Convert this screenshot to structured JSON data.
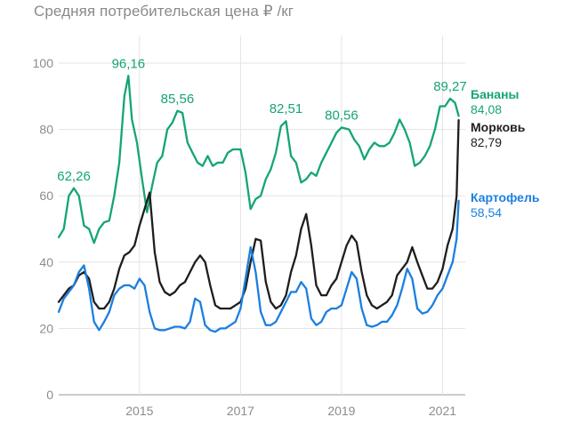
{
  "chart_data": {
    "type": "line",
    "title": "Средняя потребительская цена ₽ /кг",
    "xlabel": "",
    "ylabel": "",
    "ylim": [
      0,
      100
    ],
    "y_ticks": [
      "0",
      "20",
      "40",
      "60",
      "80",
      "100"
    ],
    "x_ticks": [
      {
        "label": "2015",
        "x": 2015.3
      },
      {
        "label": "2017",
        "x": 2017.3
      },
      {
        "label": "2019",
        "x": 2019.3
      },
      {
        "label": "2021",
        "x": 2021.3
      }
    ],
    "xlim": [
      2013.7,
      2021.75
    ],
    "grid": true,
    "series": [
      {
        "name": "Бананы",
        "color": "#15a478",
        "end_label": "84,08",
        "points": [
          [
            2013.7,
            47.5
          ],
          [
            2013.8,
            50
          ],
          [
            2013.9,
            60
          ],
          [
            2014.0,
            62.3
          ],
          [
            2014.1,
            60
          ],
          [
            2014.2,
            51
          ],
          [
            2014.3,
            50
          ],
          [
            2014.4,
            45.8
          ],
          [
            2014.5,
            50
          ],
          [
            2014.6,
            52
          ],
          [
            2014.7,
            52.5
          ],
          [
            2014.8,
            60
          ],
          [
            2014.9,
            70
          ],
          [
            2015.0,
            90
          ],
          [
            2015.08,
            96.2
          ],
          [
            2015.15,
            83
          ],
          [
            2015.25,
            76
          ],
          [
            2015.35,
            65
          ],
          [
            2015.45,
            55
          ],
          [
            2015.55,
            63
          ],
          [
            2015.65,
            70
          ],
          [
            2015.75,
            72
          ],
          [
            2015.85,
            80
          ],
          [
            2015.95,
            82
          ],
          [
            2016.05,
            85.6
          ],
          [
            2016.15,
            85
          ],
          [
            2016.25,
            76
          ],
          [
            2016.35,
            73
          ],
          [
            2016.45,
            70
          ],
          [
            2016.55,
            69
          ],
          [
            2016.65,
            72
          ],
          [
            2016.75,
            69
          ],
          [
            2016.85,
            70
          ],
          [
            2016.95,
            70
          ],
          [
            2017.05,
            73
          ],
          [
            2017.15,
            74
          ],
          [
            2017.3,
            74
          ],
          [
            2017.4,
            67
          ],
          [
            2017.5,
            56
          ],
          [
            2017.6,
            59
          ],
          [
            2017.7,
            60
          ],
          [
            2017.8,
            65
          ],
          [
            2017.9,
            68
          ],
          [
            2018.0,
            73
          ],
          [
            2018.1,
            81
          ],
          [
            2018.2,
            82.5
          ],
          [
            2018.3,
            72
          ],
          [
            2018.4,
            70
          ],
          [
            2018.5,
            64
          ],
          [
            2018.6,
            65
          ],
          [
            2018.7,
            67
          ],
          [
            2018.8,
            66
          ],
          [
            2018.9,
            70
          ],
          [
            2019.0,
            73
          ],
          [
            2019.1,
            76
          ],
          [
            2019.2,
            79
          ],
          [
            2019.3,
            80.6
          ],
          [
            2019.45,
            80
          ],
          [
            2019.55,
            77
          ],
          [
            2019.65,
            75
          ],
          [
            2019.75,
            71
          ],
          [
            2019.85,
            74
          ],
          [
            2019.95,
            76
          ],
          [
            2020.05,
            75
          ],
          [
            2020.15,
            75
          ],
          [
            2020.25,
            76
          ],
          [
            2020.35,
            79
          ],
          [
            2020.45,
            83
          ],
          [
            2020.55,
            80
          ],
          [
            2020.65,
            76
          ],
          [
            2020.75,
            69
          ],
          [
            2020.85,
            70
          ],
          [
            2020.95,
            72
          ],
          [
            2021.05,
            75
          ],
          [
            2021.15,
            80
          ],
          [
            2021.25,
            87
          ],
          [
            2021.35,
            87
          ],
          [
            2021.45,
            89.3
          ],
          [
            2021.55,
            88
          ],
          [
            2021.62,
            84.1
          ]
        ],
        "annotations": [
          {
            "text": "62,26",
            "x": 2014.0,
            "y": 62.26
          },
          {
            "text": "96,16",
            "x": 2015.08,
            "y": 96.16
          },
          {
            "text": "85,56",
            "x": 2016.05,
            "y": 85.56
          },
          {
            "text": "82,51",
            "x": 2018.2,
            "y": 82.51
          },
          {
            "text": "80,56",
            "x": 2019.3,
            "y": 80.56
          },
          {
            "text": "89,27",
            "x": 2021.45,
            "y": 89.27
          }
        ]
      },
      {
        "name": "Морковь",
        "color": "#1e1e1e",
        "end_label": "82,79",
        "points": [
          [
            2013.7,
            28
          ],
          [
            2013.8,
            30
          ],
          [
            2013.9,
            32
          ],
          [
            2014.0,
            33
          ],
          [
            2014.1,
            36
          ],
          [
            2014.2,
            37
          ],
          [
            2014.3,
            35
          ],
          [
            2014.4,
            28
          ],
          [
            2014.5,
            26
          ],
          [
            2014.6,
            26
          ],
          [
            2014.7,
            28
          ],
          [
            2014.8,
            32
          ],
          [
            2014.9,
            38
          ],
          [
            2015.0,
            42
          ],
          [
            2015.1,
            43
          ],
          [
            2015.2,
            45
          ],
          [
            2015.3,
            51
          ],
          [
            2015.4,
            56
          ],
          [
            2015.5,
            61
          ],
          [
            2015.6,
            43
          ],
          [
            2015.7,
            34
          ],
          [
            2015.8,
            31
          ],
          [
            2015.9,
            30
          ],
          [
            2016.0,
            31
          ],
          [
            2016.1,
            33
          ],
          [
            2016.2,
            34
          ],
          [
            2016.3,
            37
          ],
          [
            2016.4,
            40
          ],
          [
            2016.5,
            42
          ],
          [
            2016.6,
            40
          ],
          [
            2016.7,
            33
          ],
          [
            2016.8,
            27
          ],
          [
            2016.9,
            26
          ],
          [
            2017.0,
            26
          ],
          [
            2017.1,
            26
          ],
          [
            2017.2,
            27
          ],
          [
            2017.3,
            28
          ],
          [
            2017.4,
            32
          ],
          [
            2017.5,
            40
          ],
          [
            2017.6,
            47
          ],
          [
            2017.7,
            46.5
          ],
          [
            2017.8,
            34
          ],
          [
            2017.9,
            28
          ],
          [
            2018.0,
            26
          ],
          [
            2018.1,
            27
          ],
          [
            2018.2,
            30
          ],
          [
            2018.3,
            37
          ],
          [
            2018.4,
            42
          ],
          [
            2018.5,
            50
          ],
          [
            2018.6,
            54.5
          ],
          [
            2018.7,
            45
          ],
          [
            2018.8,
            33
          ],
          [
            2018.9,
            30
          ],
          [
            2019.0,
            30
          ],
          [
            2019.1,
            33
          ],
          [
            2019.2,
            35
          ],
          [
            2019.3,
            40
          ],
          [
            2019.4,
            45
          ],
          [
            2019.5,
            48
          ],
          [
            2019.6,
            46
          ],
          [
            2019.7,
            37
          ],
          [
            2019.8,
            30
          ],
          [
            2019.9,
            27
          ],
          [
            2020.0,
            26
          ],
          [
            2020.1,
            27
          ],
          [
            2020.2,
            28
          ],
          [
            2020.3,
            30
          ],
          [
            2020.4,
            36
          ],
          [
            2020.5,
            38
          ],
          [
            2020.6,
            40
          ],
          [
            2020.7,
            44.5
          ],
          [
            2020.8,
            40
          ],
          [
            2020.9,
            36
          ],
          [
            2021.0,
            32
          ],
          [
            2021.1,
            32
          ],
          [
            2021.2,
            34
          ],
          [
            2021.3,
            38
          ],
          [
            2021.4,
            45
          ],
          [
            2021.5,
            50
          ],
          [
            2021.58,
            60
          ],
          [
            2021.62,
            82.8
          ]
        ]
      },
      {
        "name": "Картофель",
        "color": "#1b7fe0",
        "end_label": "58,54",
        "points": [
          [
            2013.7,
            25
          ],
          [
            2013.8,
            29
          ],
          [
            2013.9,
            31
          ],
          [
            2014.0,
            33
          ],
          [
            2014.1,
            37
          ],
          [
            2014.2,
            39
          ],
          [
            2014.3,
            32
          ],
          [
            2014.4,
            22
          ],
          [
            2014.5,
            19.5
          ],
          [
            2014.6,
            22
          ],
          [
            2014.7,
            25
          ],
          [
            2014.8,
            30
          ],
          [
            2014.9,
            32
          ],
          [
            2015.0,
            33
          ],
          [
            2015.1,
            33
          ],
          [
            2015.2,
            32
          ],
          [
            2015.3,
            35
          ],
          [
            2015.4,
            33
          ],
          [
            2015.5,
            25
          ],
          [
            2015.6,
            20
          ],
          [
            2015.7,
            19.5
          ],
          [
            2015.8,
            19.5
          ],
          [
            2015.9,
            20
          ],
          [
            2016.0,
            20.5
          ],
          [
            2016.1,
            20.5
          ],
          [
            2016.2,
            20
          ],
          [
            2016.3,
            22
          ],
          [
            2016.4,
            29
          ],
          [
            2016.5,
            28
          ],
          [
            2016.6,
            21
          ],
          [
            2016.7,
            19.5
          ],
          [
            2016.8,
            19
          ],
          [
            2016.9,
            20
          ],
          [
            2017.0,
            20
          ],
          [
            2017.1,
            21
          ],
          [
            2017.2,
            22
          ],
          [
            2017.3,
            26
          ],
          [
            2017.4,
            35
          ],
          [
            2017.5,
            44.5
          ],
          [
            2017.6,
            37
          ],
          [
            2017.7,
            25
          ],
          [
            2017.8,
            21
          ],
          [
            2017.9,
            21
          ],
          [
            2018.0,
            22
          ],
          [
            2018.1,
            25
          ],
          [
            2018.2,
            28
          ],
          [
            2018.3,
            31
          ],
          [
            2018.4,
            31
          ],
          [
            2018.5,
            34
          ],
          [
            2018.6,
            32
          ],
          [
            2018.7,
            23
          ],
          [
            2018.8,
            21
          ],
          [
            2018.9,
            22
          ],
          [
            2019.0,
            25
          ],
          [
            2019.1,
            26
          ],
          [
            2019.2,
            26
          ],
          [
            2019.3,
            27
          ],
          [
            2019.4,
            32
          ],
          [
            2019.5,
            37
          ],
          [
            2019.6,
            35
          ],
          [
            2019.7,
            26
          ],
          [
            2019.8,
            21
          ],
          [
            2019.9,
            20.5
          ],
          [
            2020.0,
            21
          ],
          [
            2020.1,
            22
          ],
          [
            2020.2,
            22
          ],
          [
            2020.3,
            24
          ],
          [
            2020.4,
            27
          ],
          [
            2020.5,
            32
          ],
          [
            2020.6,
            38
          ],
          [
            2020.7,
            35
          ],
          [
            2020.8,
            26
          ],
          [
            2020.9,
            24.5
          ],
          [
            2021.0,
            25
          ],
          [
            2021.1,
            27
          ],
          [
            2021.2,
            30
          ],
          [
            2021.3,
            32
          ],
          [
            2021.4,
            36
          ],
          [
            2021.5,
            40
          ],
          [
            2021.58,
            47
          ],
          [
            2021.62,
            58.5
          ]
        ]
      }
    ]
  }
}
